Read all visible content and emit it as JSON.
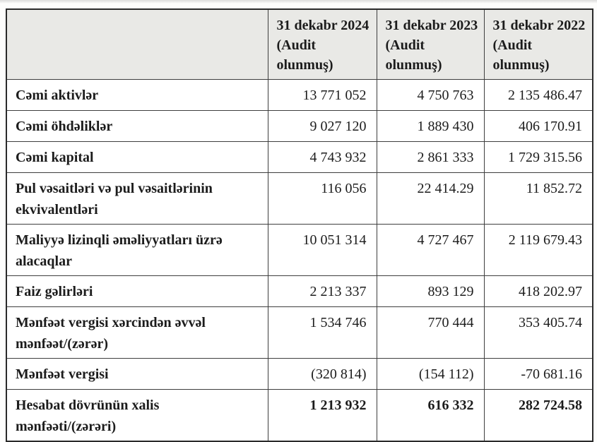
{
  "colors": {
    "header_bg": "#e9e9e6",
    "inner_border": "#3e3e3e",
    "outer_border": "#2a2a2a",
    "text": "#1c1c1c",
    "page_bg": "#fdfdfc"
  },
  "table": {
    "header": {
      "label_col": "",
      "columns": [
        {
          "date": "31 dekabr 2024",
          "note": "(Audit olunmuş)"
        },
        {
          "date": "31 dekabr 2023",
          "note": "(Audit olunmuş)"
        },
        {
          "date": "31 dekabr 2022",
          "note": "(Audit olunmuş)"
        }
      ]
    },
    "rows": [
      {
        "label": "Cəmi aktivlər",
        "values": [
          "13 771 052",
          "4 750 763",
          "2 135 486.47"
        ],
        "emphasis": false
      },
      {
        "label": "Cəmi öhdəliklər",
        "values": [
          "9 027 120",
          "1 889 430",
          "406 170.91"
        ],
        "emphasis": false
      },
      {
        "label": "Cəmi kapital",
        "values": [
          "4 743 932",
          "2 861 333",
          "1 729 315.56"
        ],
        "emphasis": false
      },
      {
        "label": "Pul vəsaitləri və pul vəsaitlərinin ekvivalentləri",
        "values": [
          "116 056",
          "22 414.29",
          "11 852.72"
        ],
        "emphasis": false
      },
      {
        "label": "Maliyyə lizinqli əməliyyatları üzrə alacaqlar",
        "values": [
          "10 051 314",
          "4 727 467",
          "2 119 679.43"
        ],
        "emphasis": false
      },
      {
        "label": "Faiz gəlirləri",
        "values": [
          "2 213 337",
          "893 129",
          "418 202.97"
        ],
        "emphasis": false
      },
      {
        "label": "Mənfəət vergisi xərcindən əvvəl mənfəət/(zərər)",
        "values": [
          "1 534 746",
          "770 444",
          "353 405.74"
        ],
        "emphasis": false
      },
      {
        "label": "Mənfəət vergisi",
        "values": [
          "(320 814)",
          "(154 112)",
          "-70 681.16"
        ],
        "emphasis": false
      },
      {
        "label": "Hesabat dövrünün xalis mənfəəti/(zərəri)",
        "values": [
          "1 213 932",
          "616 332",
          "282 724.58"
        ],
        "emphasis": true
      }
    ]
  }
}
